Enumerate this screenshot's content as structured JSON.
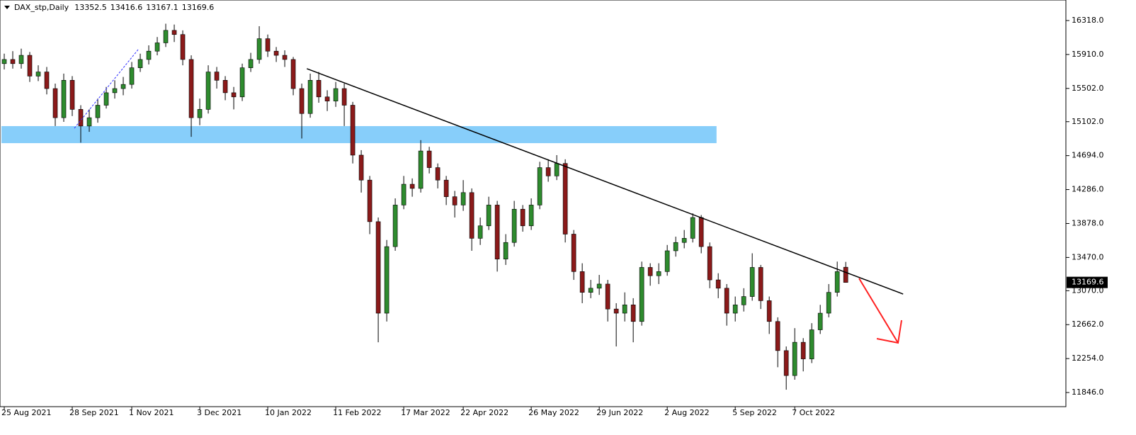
{
  "chart_data": {
    "type": "candlestick",
    "symbol": "DAX_stp,Daily",
    "up_color": "#2e8b2e",
    "down_color": "#8b1a1a",
    "xlim": [
      -0.5,
      124.9
    ],
    "ylim": [
      11676,
      16565
    ],
    "yticks": [
      {
        "value": 16318,
        "label": "16318.0"
      },
      {
        "value": 15910,
        "label": "15910.0"
      },
      {
        "value": 15502,
        "label": "15502.0"
      },
      {
        "value": 15102,
        "label": "15102.0"
      },
      {
        "value": 14694,
        "label": "14694.0"
      },
      {
        "value": 14286,
        "label": "14286.0"
      },
      {
        "value": 13878,
        "label": "13878.0"
      },
      {
        "value": 13470,
        "label": "13470.0"
      },
      {
        "value": 13070,
        "label": "13070.0"
      },
      {
        "value": 12662,
        "label": "12662.0"
      },
      {
        "value": 12254,
        "label": "12254.0"
      },
      {
        "value": 11846,
        "label": "11846.0"
      }
    ],
    "xticks": [
      {
        "value": 0,
        "label": "25 Aug 2021"
      },
      {
        "value": 8,
        "label": "28 Sep 2021"
      },
      {
        "value": 15,
        "label": "1 Nov 2021"
      },
      {
        "value": 23,
        "label": "3 Dec 2021"
      },
      {
        "value": 31,
        "label": "10 Jan 2022"
      },
      {
        "value": 39,
        "label": "11 Feb 2022"
      },
      {
        "value": 47,
        "label": "17 Mar 2022"
      },
      {
        "value": 54,
        "label": "22 Apr 2022"
      },
      {
        "value": 62,
        "label": "26 May 2022"
      },
      {
        "value": 70,
        "label": "29 Jun 2022"
      },
      {
        "value": 78,
        "label": "2 Aug 2022"
      },
      {
        "value": 86,
        "label": "5 Sep 2022"
      },
      {
        "value": 93,
        "label": "7 Oct 2022"
      }
    ],
    "zone": {
      "x": [
        -0.33,
        83.8
      ],
      "y": [
        14844,
        15049
      ],
      "color": "#87cefa"
    },
    "trendline": {
      "x": [
        35.6,
        105.75
      ],
      "y": [
        15739,
        13030
      ],
      "color": "#000000"
    },
    "open": [
      15800,
      15850,
      15800,
      15900,
      15650,
      15700,
      15500,
      15150,
      15600,
      15250,
      15050,
      15150,
      15300,
      15450,
      15500,
      15550,
      15750,
      15850,
      15950,
      16050,
      16200,
      16150,
      15850,
      15150,
      15250,
      15700,
      15600,
      15450,
      15400,
      15750,
      15850,
      16100,
      15950,
      15900,
      15850,
      15500,
      15200,
      15600,
      15400,
      15350,
      15500,
      15300,
      14700,
      14400,
      13900,
      12800,
      13600,
      14100,
      14350,
      14300,
      14750,
      14550,
      14400,
      14200,
      14100,
      14250,
      13700,
      13850,
      14100,
      13450,
      13650,
      14050,
      13850,
      14100,
      14550,
      14450,
      14600,
      13750,
      13300,
      13050,
      13100,
      13150,
      12850,
      12800,
      12900,
      12700,
      13350,
      13250,
      13300,
      13550,
      13650,
      13700,
      13950,
      13600,
      13200,
      13100,
      12800,
      12900,
      13000,
      13350,
      12950,
      12700,
      12350,
      12050,
      12450,
      12250,
      12600,
      12800,
      13050,
      13352.5
    ],
    "high": [
      15920,
      15950,
      15980,
      15940,
      15780,
      15760,
      15560,
      15680,
      15650,
      15300,
      15250,
      15380,
      15520,
      15600,
      15640,
      15820,
      15920,
      16020,
      16120,
      16280,
      16270,
      16200,
      15900,
      15380,
      15780,
      15760,
      15650,
      15520,
      15800,
      15930,
      16250,
      16150,
      16000,
      15960,
      15880,
      15560,
      15680,
      15700,
      15480,
      15580,
      15560,
      15340,
      14760,
      14450,
      13950,
      13680,
      14180,
      14450,
      14420,
      14880,
      14800,
      14600,
      14450,
      14270,
      14400,
      14300,
      13950,
      14200,
      14150,
      13750,
      14150,
      14100,
      14180,
      14620,
      14650,
      14700,
      14650,
      13800,
      13400,
      13200,
      13260,
      13200,
      12920,
      13050,
      12980,
      13420,
      13400,
      13400,
      13620,
      13720,
      13800,
      14000,
      13980,
      13650,
      13280,
      13150,
      13000,
      13100,
      13520,
      13380,
      13000,
      12750,
      12400,
      12620,
      12500,
      12680,
      12900,
      13150,
      13420,
      13416.6
    ],
    "low": [
      15730,
      15740,
      15740,
      15580,
      15590,
      15430,
      15050,
      15100,
      15170,
      14850,
      14980,
      15090,
      15260,
      15380,
      15420,
      15500,
      15700,
      15790,
      15900,
      16000,
      16060,
      15780,
      14920,
      15060,
      15200,
      15500,
      15360,
      15250,
      15350,
      15700,
      15800,
      15880,
      15820,
      15760,
      15420,
      14900,
      15150,
      15330,
      15230,
      15280,
      15050,
      14600,
      14250,
      13750,
      12450,
      12700,
      13550,
      14050,
      14200,
      14250,
      14480,
      14300,
      14100,
      13950,
      14030,
      13550,
      13620,
      13800,
      13300,
      13380,
      13600,
      13780,
      13800,
      14050,
      14380,
      14400,
      13650,
      13200,
      12920,
      12980,
      13020,
      12700,
      12400,
      12700,
      12450,
      12650,
      13130,
      13150,
      13250,
      13480,
      13580,
      13650,
      13520,
      13100,
      12980,
      12650,
      12700,
      12820,
      12950,
      12850,
      12550,
      12150,
      11880,
      12000,
      12100,
      12200,
      12550,
      12750,
      13000,
      13167.1
    ],
    "close": [
      15850,
      15800,
      15900,
      15650,
      15700,
      15500,
      15150,
      15600,
      15250,
      15050,
      15150,
      15300,
      15450,
      15500,
      15550,
      15750,
      15850,
      15950,
      16050,
      16200,
      16150,
      15850,
      15150,
      15250,
      15700,
      15600,
      15450,
      15400,
      15750,
      15850,
      16100,
      15950,
      15900,
      15850,
      15500,
      15200,
      15600,
      15400,
      15350,
      15500,
      15300,
      14700,
      14400,
      13900,
      12800,
      13600,
      14100,
      14350,
      14300,
      14750,
      14550,
      14400,
      14200,
      14100,
      14250,
      13700,
      13850,
      14100,
      13450,
      13650,
      14050,
      13850,
      14100,
      14550,
      14450,
      14600,
      13750,
      13300,
      13050,
      13100,
      13150,
      12850,
      12800,
      12900,
      12700,
      13350,
      13250,
      13300,
      13550,
      13650,
      13700,
      13950,
      13600,
      13200,
      13100,
      12800,
      12900,
      13000,
      13350,
      12950,
      12700,
      12350,
      12050,
      12450,
      12250,
      12600,
      12800,
      13050,
      13300,
      13169.6
    ]
  }
}
